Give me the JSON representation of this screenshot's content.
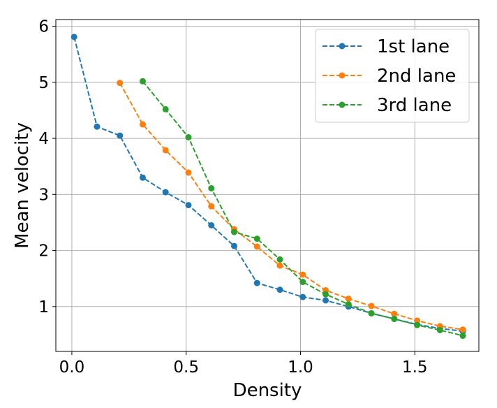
{
  "chart_data": {
    "type": "line",
    "xlabel": "Density",
    "ylabel": "Mean velocity",
    "xlim": [
      -0.07,
      1.78
    ],
    "ylim": [
      0.2,
      6.12
    ],
    "xticks": [
      0.0,
      0.5,
      1.0,
      1.5
    ],
    "xtick_labels": [
      "0.0",
      "0.5",
      "1.0",
      "1.5"
    ],
    "yticks": [
      1,
      2,
      3,
      4,
      5,
      6
    ],
    "ytick_labels": [
      "1",
      "2",
      "3",
      "4",
      "5",
      "6"
    ],
    "grid": true,
    "legend_position": "top-right",
    "series": [
      {
        "name": "1st lane",
        "color": "#1f77b4",
        "x": [
          0.01,
          0.11,
          0.21,
          0.31,
          0.41,
          0.51,
          0.61,
          0.71,
          0.81,
          0.91,
          1.01,
          1.11,
          1.21,
          1.31,
          1.41,
          1.51,
          1.61,
          1.71
        ],
        "y": [
          5.81,
          4.21,
          4.05,
          3.3,
          3.04,
          2.81,
          2.45,
          2.08,
          1.42,
          1.3,
          1.17,
          1.11,
          1.0,
          0.88,
          0.78,
          0.68,
          0.61,
          0.56
        ]
      },
      {
        "name": "2nd lane",
        "color": "#ff7f0e",
        "x": [
          0.21,
          0.31,
          0.41,
          0.51,
          0.61,
          0.71,
          0.81,
          0.91,
          1.01,
          1.11,
          1.21,
          1.31,
          1.41,
          1.51,
          1.61,
          1.71
        ],
        "y": [
          4.99,
          4.25,
          3.79,
          3.39,
          2.79,
          2.38,
          2.07,
          1.73,
          1.57,
          1.29,
          1.14,
          1.01,
          0.87,
          0.75,
          0.65,
          0.59
        ]
      },
      {
        "name": "3rd lane",
        "color": "#2ca02c",
        "x": [
          0.31,
          0.41,
          0.51,
          0.61,
          0.71,
          0.81,
          0.91,
          1.01,
          1.11,
          1.21,
          1.31,
          1.41,
          1.51,
          1.61,
          1.71
        ],
        "y": [
          5.02,
          4.52,
          4.02,
          3.11,
          2.33,
          2.21,
          1.84,
          1.44,
          1.22,
          1.04,
          0.88,
          0.78,
          0.67,
          0.58,
          0.48
        ]
      }
    ]
  }
}
